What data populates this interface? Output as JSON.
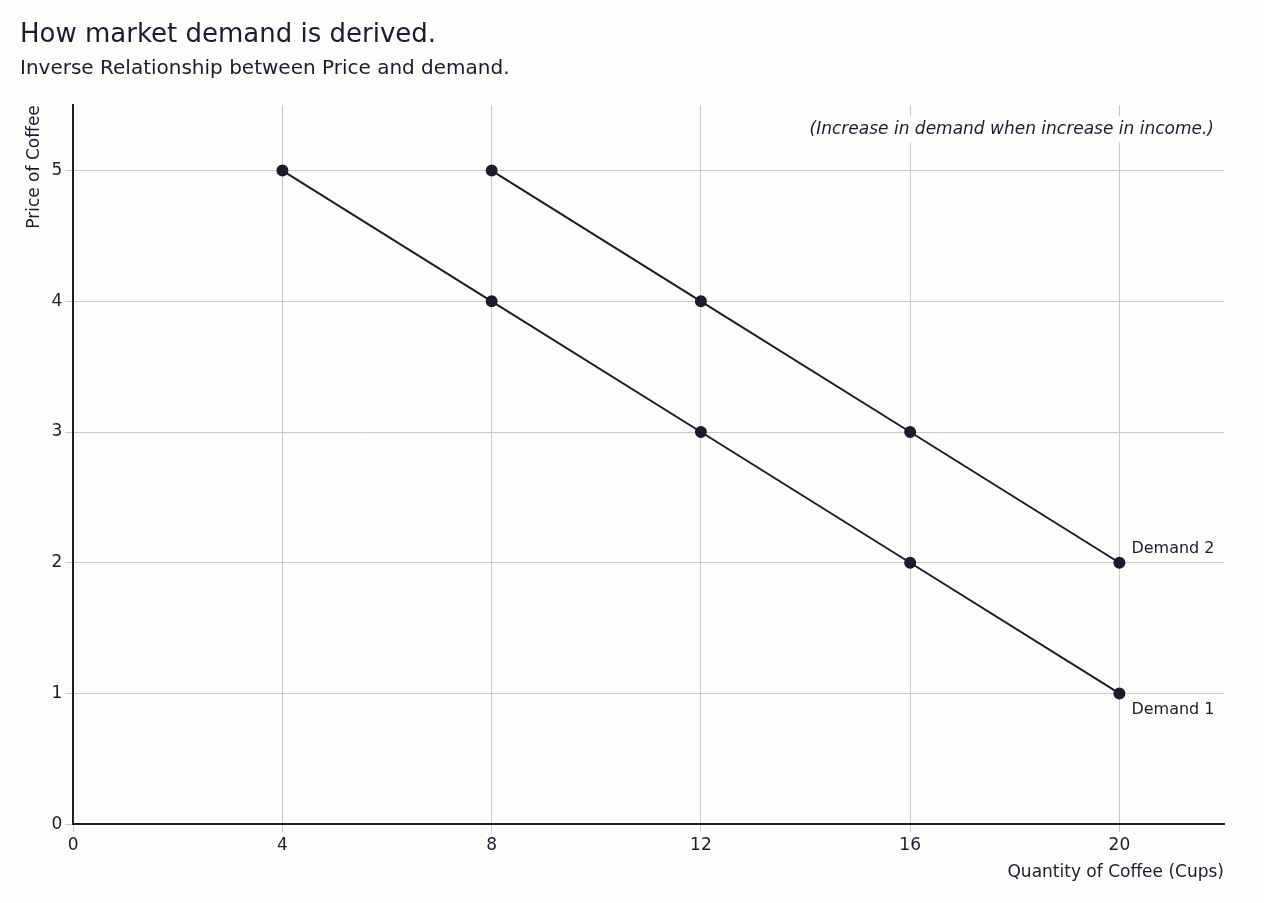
{
  "chart_data": {
    "type": "line",
    "title": "How market demand is derived.",
    "subtitle": "Inverse Relationship between Price and demand.",
    "x_label": "Quantity of Coffee (Cups)",
    "y_label": "Price of Coffee",
    "annotation": "(Increase in demand when increase in income.)",
    "x": [
      4,
      8,
      12,
      16,
      20
    ],
    "series": [
      {
        "name": "Demand 1",
        "color": "#1c1c2e",
        "values": [
          5,
          4,
          3,
          2,
          1
        ]
      },
      {
        "name": "Demand 2",
        "color": "#1c1c2e",
        "values": [
          null,
          5,
          4,
          3,
          2
        ]
      }
    ],
    "xlim": [
      0,
      22
    ],
    "ylim": [
      0,
      5.5
    ],
    "xticks": [
      0,
      4,
      8,
      12,
      16,
      20
    ],
    "yticks": [
      0,
      1,
      2,
      3,
      4,
      5
    ],
    "grid": true,
    "marker": "circle"
  }
}
